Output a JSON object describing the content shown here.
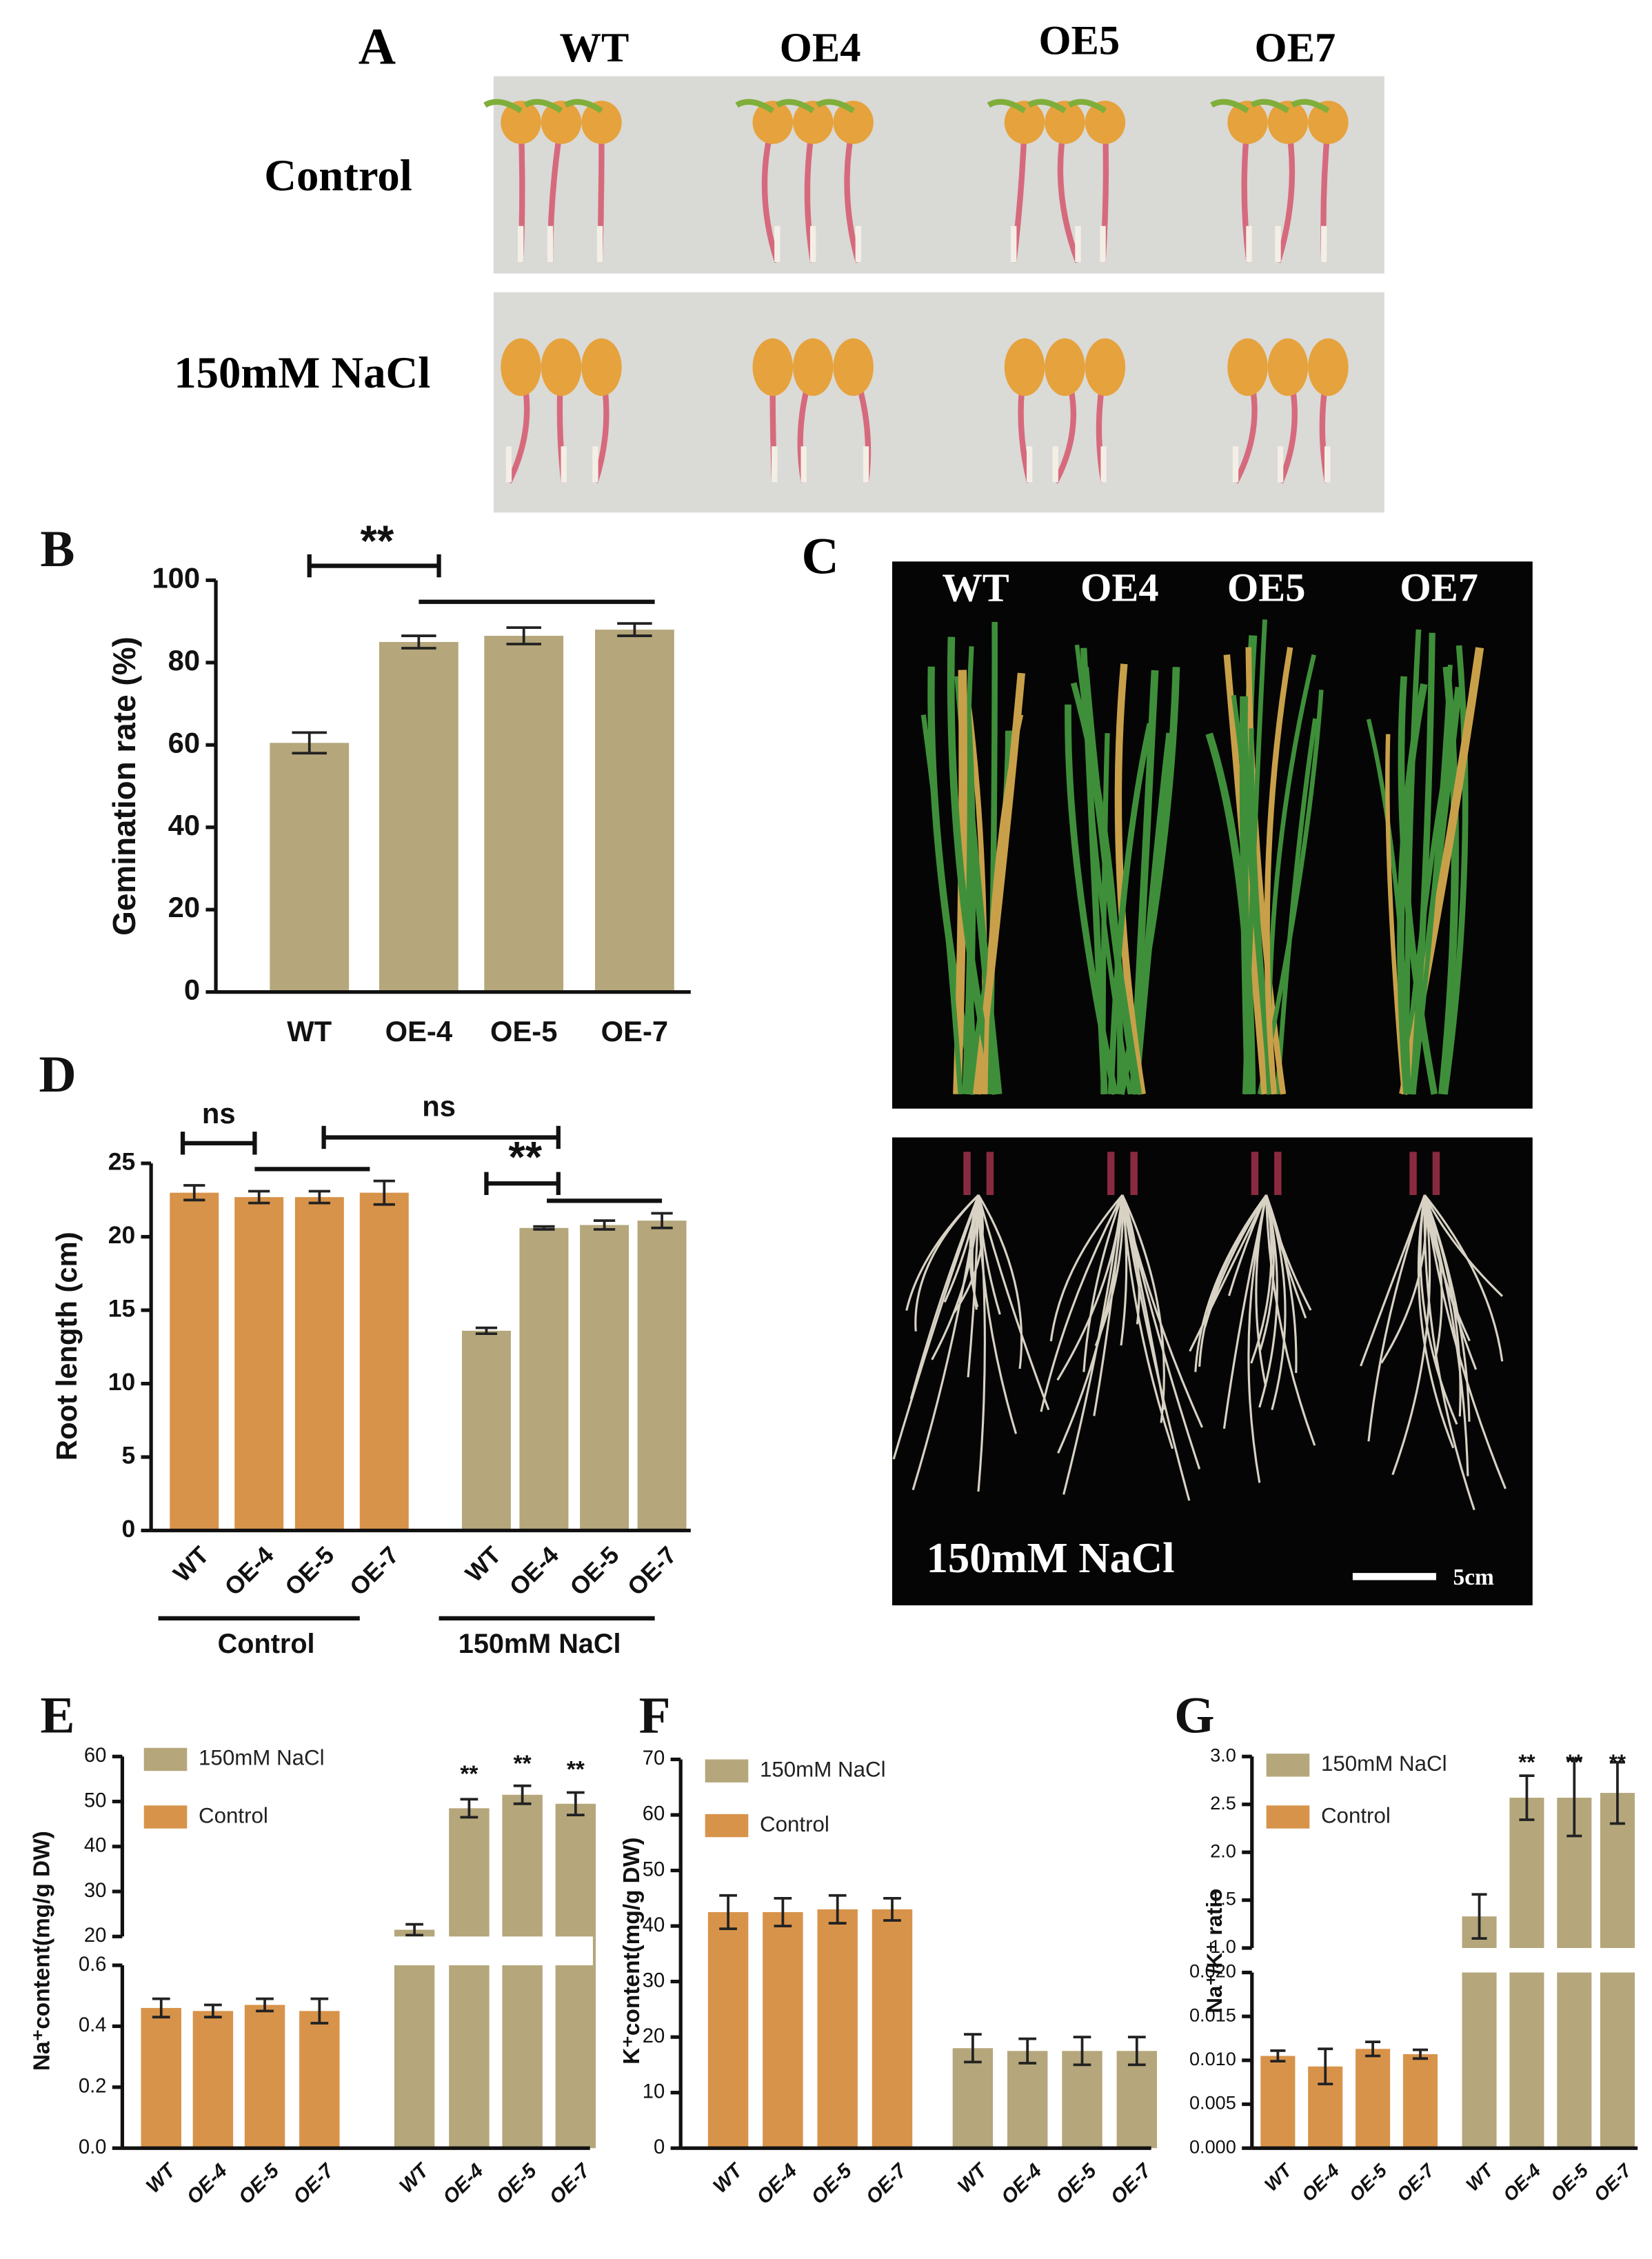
{
  "panel_a": {
    "letter": "A",
    "columns": [
      "WT",
      "OE4",
      "OE5",
      "OE7"
    ],
    "rows": [
      "Control",
      "150mM NaCl"
    ]
  },
  "panel_c": {
    "letter": "C",
    "columns": [
      "WT",
      "OE4",
      "OE5",
      "OE7"
    ],
    "treatment": "150mM NaCl",
    "scale_bar": "5cm"
  },
  "chart_data": [
    {
      "type": "bar",
      "panel": "B",
      "ylabel": "Gemination rate (%)",
      "categories": [
        "WT",
        "OE-4",
        "OE-5",
        "OE-7"
      ],
      "values": [
        60.5,
        85,
        86.5,
        88
      ],
      "errors": [
        2.5,
        1.5,
        2,
        1.5
      ],
      "color": "#b5a77b",
      "ylim": [
        0,
        100
      ],
      "yticks": [
        0,
        20,
        40,
        60,
        80,
        100
      ],
      "annotations": [
        "**"
      ]
    },
    {
      "type": "bar",
      "panel": "D",
      "ylabel": "Root length (cm)",
      "categories": [
        "WT",
        "OE-4",
        "OE-5",
        "OE-7"
      ],
      "series": [
        {
          "name": "Control",
          "color": "#d8934a",
          "values": [
            23,
            22.7,
            22.7,
            23
          ],
          "errors": [
            0.5,
            0.4,
            0.4,
            0.8
          ]
        },
        {
          "name": "150mM NaCl",
          "color": "#b5a77b",
          "values": [
            13.6,
            20.6,
            20.8,
            21.1
          ],
          "errors": [
            0.2,
            0.1,
            0.3,
            0.5
          ]
        }
      ],
      "ylim": [
        0,
        25
      ],
      "yticks": [
        0,
        5,
        10,
        15,
        20,
        25
      ],
      "annotations": [
        "ns",
        "ns",
        "**"
      ]
    },
    {
      "type": "bar",
      "panel": "E",
      "ylabel": "Na⁺content(mg/g DW)",
      "categories": [
        "WT",
        "OE-4",
        "OE-5",
        "OE-7"
      ],
      "series": [
        {
          "name": "150mM NaCl",
          "color": "#b5a77b",
          "values": [
            21.5,
            48.5,
            51.5,
            49.5
          ],
          "errors": [
            1.2,
            2,
            2,
            2.5
          ]
        },
        {
          "name": "Control",
          "color": "#d8934a",
          "values": [
            0.46,
            0.45,
            0.47,
            0.45
          ],
          "errors": [
            0.03,
            0.02,
            0.02,
            0.04
          ]
        }
      ],
      "ylim": [
        0,
        0.6
      ],
      "yticks": [
        {
          "value": 0,
          "label": "0.0"
        },
        0.2,
        0.4,
        0.6
      ],
      "ylim_upper": [
        20,
        60
      ],
      "yticks_upper": [
        20,
        30,
        40,
        50,
        60
      ],
      "annotations": [
        "**",
        "**",
        "**"
      ]
    },
    {
      "type": "bar",
      "panel": "F",
      "ylabel": "K⁺content(mg/g DW)",
      "categories": [
        "WT",
        "OE-4",
        "OE-5",
        "OE-7"
      ],
      "series": [
        {
          "name": "150mM NaCl",
          "color": "#b5a77b",
          "values": [
            18,
            17.5,
            17.5,
            17.5
          ],
          "errors": [
            2.5,
            2.2,
            2.5,
            2.5
          ]
        },
        {
          "name": "Control",
          "color": "#d8934a",
          "values": [
            42.5,
            42.5,
            43,
            43
          ],
          "errors": [
            3,
            2.5,
            2.5,
            2
          ]
        }
      ],
      "ylim": [
        0,
        70
      ],
      "yticks": [
        0,
        10,
        20,
        30,
        40,
        50,
        60,
        70
      ]
    },
    {
      "type": "bar",
      "panel": "G",
      "ylabel": "Na⁺/K⁺ ratio",
      "categories": [
        "WT",
        "OE-4",
        "OE-5",
        "OE-7"
      ],
      "series": [
        {
          "name": "150mM NaCl",
          "color": "#b5a77b",
          "values": [
            1.33,
            2.57,
            2.57,
            2.62
          ],
          "errors": [
            0.23,
            0.23,
            0.4,
            0.32
          ]
        },
        {
          "name": "Control",
          "color": "#d8934a",
          "values": [
            0.0105,
            0.0093,
            0.0113,
            0.0107
          ],
          "errors": [
            0.0006,
            0.002,
            0.0008,
            0.0005
          ]
        }
      ],
      "ylim": [
        0,
        0.02
      ],
      "yticks": [
        {
          "value": 0,
          "label": "0.000"
        },
        {
          "value": 0.005,
          "label": "0.005"
        },
        {
          "value": 0.01,
          "label": "0.010"
        },
        {
          "value": 0.015,
          "label": "0.015"
        },
        {
          "value": 0.02,
          "label": "0.020"
        }
      ],
      "ylim_upper": [
        1,
        3
      ],
      "yticks_upper": [
        {
          "value": 1,
          "label": "1.0"
        },
        1.5,
        {
          "value": 2,
          "label": "2.0"
        },
        2.5,
        {
          "value": 3,
          "label": "3.0"
        }
      ],
      "annotations": [
        "**",
        "**",
        "**"
      ]
    }
  ]
}
